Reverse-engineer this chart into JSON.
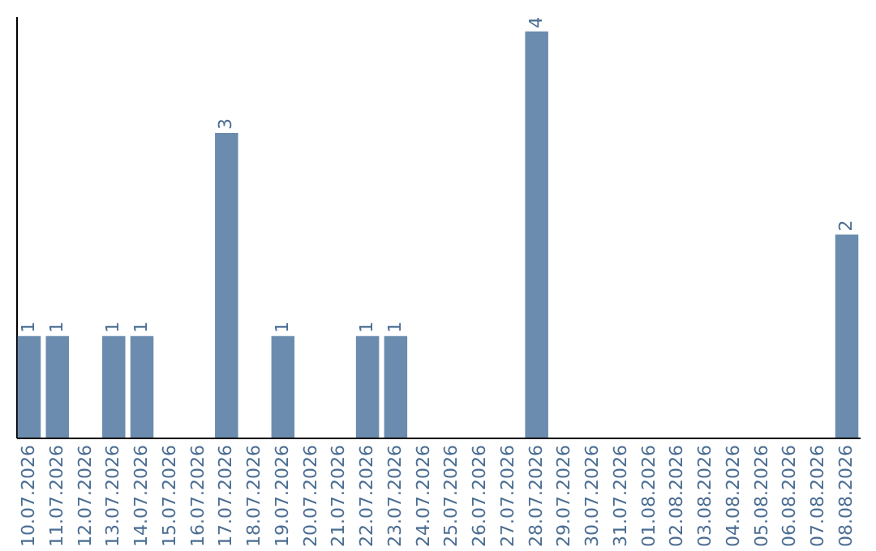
{
  "chart_data": {
    "type": "bar",
    "categories": [
      "10.07.2026",
      "11.07.2026",
      "12.07.2026",
      "13.07.2026",
      "14.07.2026",
      "15.07.2026",
      "16.07.2026",
      "17.07.2026",
      "18.07.2026",
      "19.07.2026",
      "20.07.2026",
      "21.07.2026",
      "22.07.2026",
      "23.07.2026",
      "24.07.2026",
      "25.07.2026",
      "26.07.2026",
      "27.07.2026",
      "28.07.2026",
      "29.07.2026",
      "30.07.2026",
      "31.07.2026",
      "01.08.2026",
      "02.08.2026",
      "03.08.2026",
      "04.08.2026",
      "05.08.2026",
      "06.08.2026",
      "07.08.2026",
      "08.08.2026"
    ],
    "values": [
      1,
      1,
      0,
      1,
      1,
      0,
      0,
      3,
      0,
      1,
      0,
      0,
      1,
      1,
      0,
      0,
      0,
      0,
      4,
      0,
      0,
      0,
      0,
      0,
      0,
      0,
      0,
      0,
      0,
      2
    ],
    "value_labels": [
      "1",
      "1",
      null,
      "1",
      "1",
      null,
      null,
      "3",
      null,
      "1",
      null,
      null,
      "1",
      "1",
      null,
      null,
      null,
      null,
      "4",
      null,
      null,
      null,
      null,
      null,
      null,
      null,
      null,
      null,
      null,
      "2"
    ],
    "color": "#6b8cae",
    "ylim": [
      0,
      4.15
    ],
    "tick_labels": "x",
    "grid": false
  }
}
